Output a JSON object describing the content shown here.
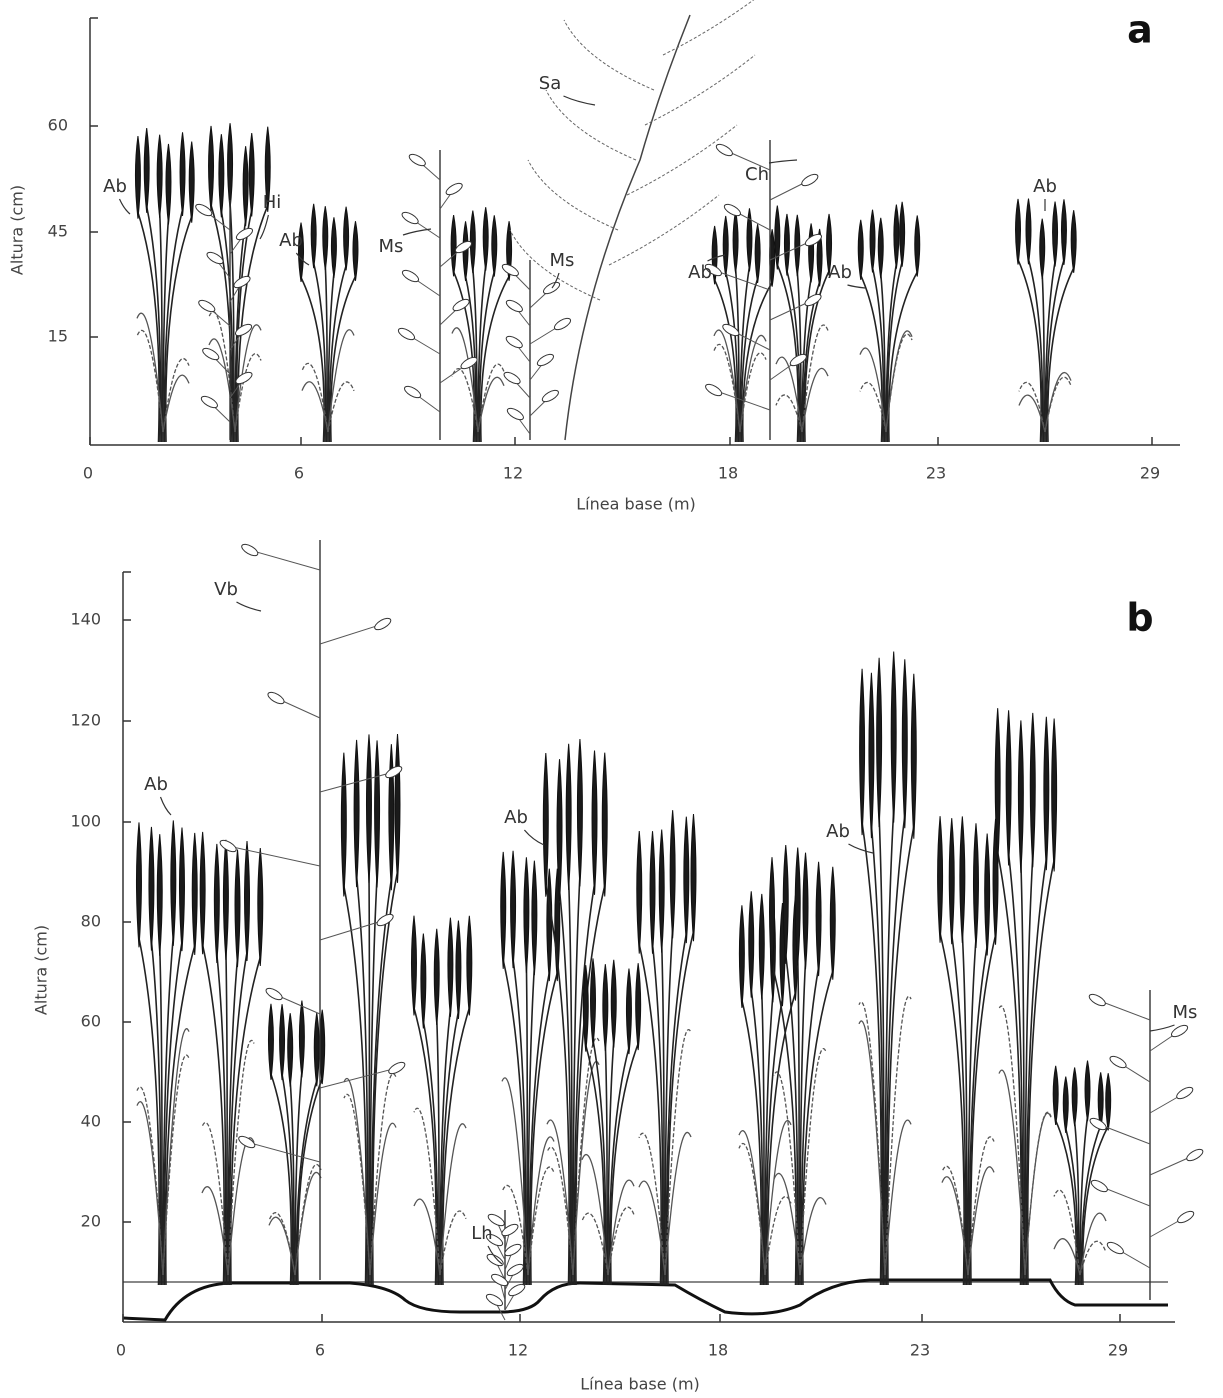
{
  "panels": [
    {
      "letter": "a",
      "x_axis_label": "Línea base (m)",
      "y_axis_label": "Altura (cm)",
      "x_ticks": [
        0,
        6,
        12,
        18,
        23,
        29
      ],
      "y_ticks": [
        15,
        45,
        60
      ],
      "species_labels": [
        "Ab",
        "Hi",
        "Ab",
        "Ms",
        "Ms",
        "Sa",
        "Ch",
        "Ab",
        "Ab",
        "Ab"
      ]
    },
    {
      "letter": "b",
      "x_axis_label": "Línea base (m)",
      "y_axis_label": "Altura (cm)",
      "x_ticks": [
        0,
        6,
        12,
        18,
        23,
        29
      ],
      "y_ticks": [
        20,
        40,
        60,
        80,
        100,
        120,
        140
      ],
      "species_labels": [
        "Vb",
        "Ab",
        "Ab",
        "Ab",
        "Lh",
        "Ms"
      ]
    }
  ]
}
